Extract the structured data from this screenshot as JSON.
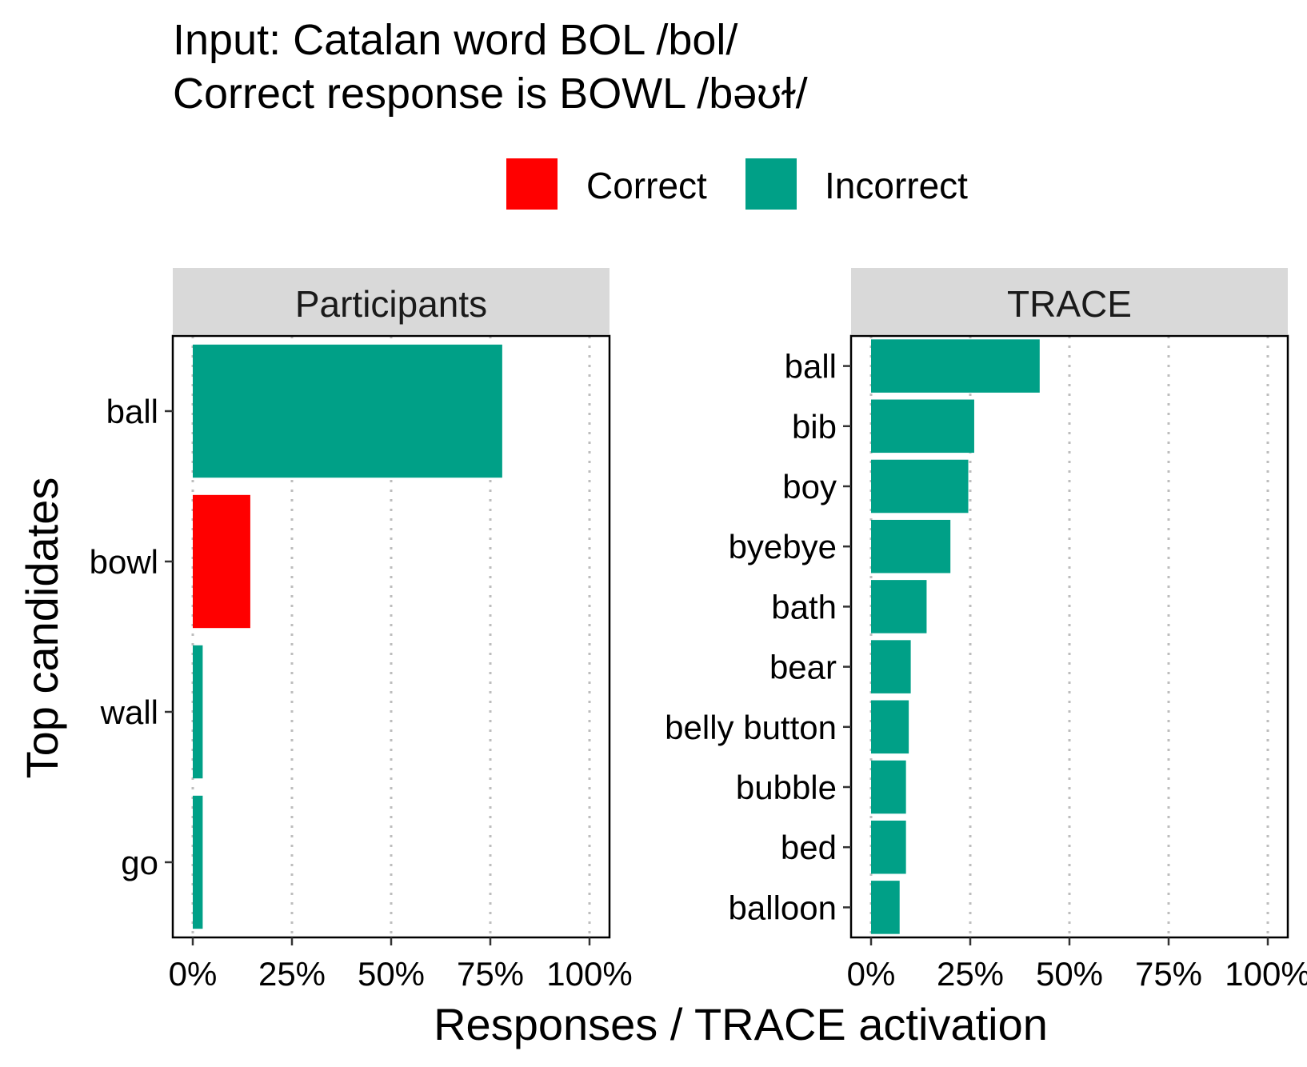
{
  "title_line1": "Input: Catalan word BOL /bol/",
  "title_line2": "Correct response is BOWL /bəʊɫ/",
  "legend": [
    {
      "label": "Correct",
      "color": "#ff0000"
    },
    {
      "label": "Incorrect",
      "color": "#00a087"
    }
  ],
  "chart_data": {
    "type": "bar",
    "orientation": "horizontal",
    "xlabel": "Responses / TRACE activation",
    "ylabel": "Top candidates",
    "xlim": [
      0,
      1
    ],
    "xticks": [
      "0%",
      "25%",
      "50%",
      "75%",
      "100%"
    ],
    "grid": "vertical dotted",
    "legend_position": "top",
    "panels": [
      {
        "name": "Participants",
        "categories": [
          "ball",
          "bowl",
          "wall",
          "go"
        ],
        "values": [
          0.78,
          0.145,
          0.025,
          0.025
        ],
        "status": [
          "Incorrect",
          "Correct",
          "Incorrect",
          "Incorrect"
        ]
      },
      {
        "name": "TRACE",
        "categories": [
          "ball",
          "bib",
          "boy",
          "byebye",
          "bath",
          "bear",
          "belly button",
          "bubble",
          "bed",
          "balloon"
        ],
        "values": [
          0.425,
          0.26,
          0.245,
          0.2,
          0.14,
          0.1,
          0.095,
          0.088,
          0.088,
          0.072
        ],
        "status": [
          "Incorrect",
          "Incorrect",
          "Incorrect",
          "Incorrect",
          "Incorrect",
          "Incorrect",
          "Incorrect",
          "Incorrect",
          "Incorrect",
          "Incorrect"
        ]
      }
    ]
  }
}
